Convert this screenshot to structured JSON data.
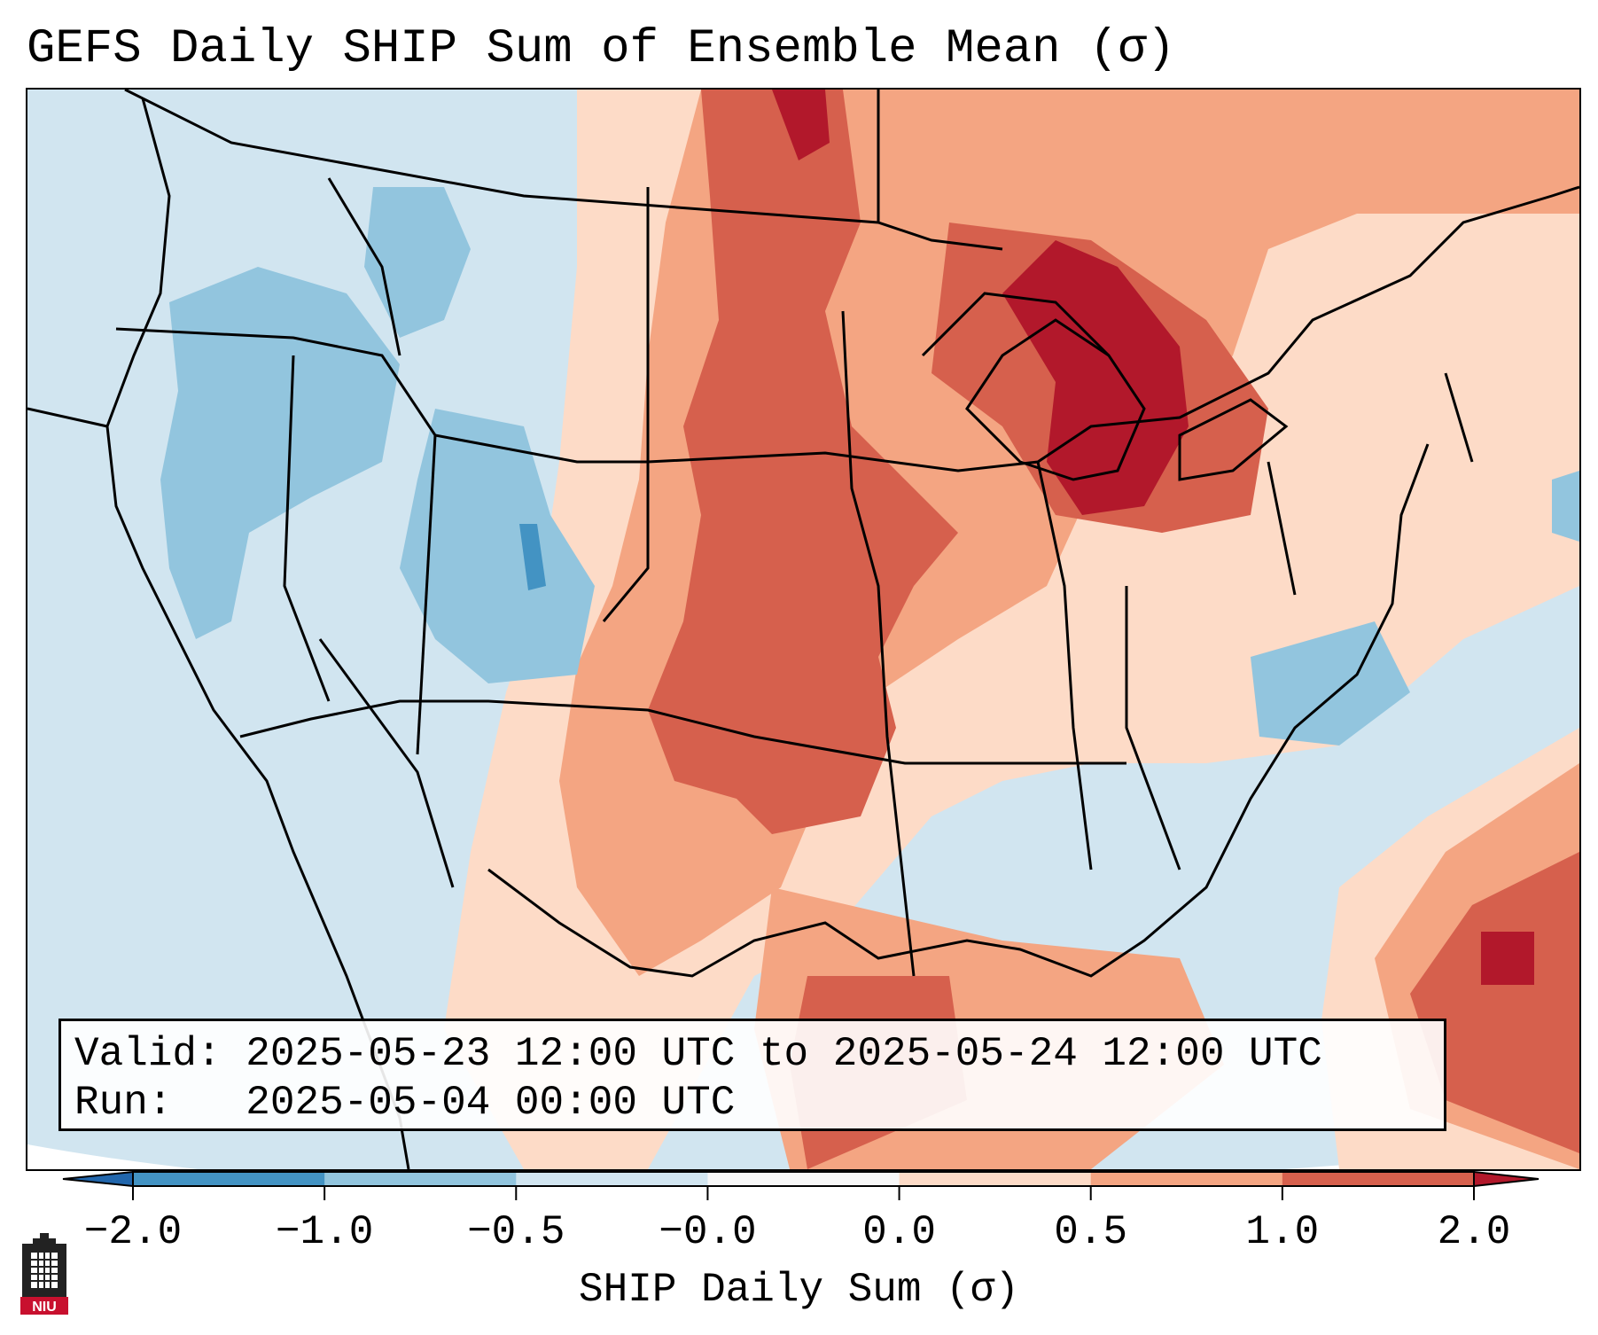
{
  "title": "GEFS Daily SHIP Sum of Ensemble Mean (σ)",
  "info": {
    "valid_label": "Valid:",
    "valid_value": "2025-05-23 12:00 UTC to 2025-05-24 12:00 UTC",
    "run_label": "Run:",
    "run_value": "2025-05-04 00:00 UTC"
  },
  "colorbar": {
    "label": "SHIP Daily Sum (σ)",
    "ticks": [
      "−2.0",
      "−1.0",
      "−0.5",
      "−0.0",
      "0.0",
      "0.5",
      "1.0",
      "2.0"
    ],
    "bins": [
      {
        "from": -2.0,
        "to": -1.0,
        "color": "#4393c3"
      },
      {
        "from": -1.0,
        "to": -0.5,
        "color": "#92c5de"
      },
      {
        "from": -0.5,
        "to": -0.0,
        "color": "#d1e5f0"
      },
      {
        "from": -0.0,
        "to": 0.0,
        "color": "#f7f7f7"
      },
      {
        "from": 0.0,
        "to": 0.5,
        "color": "#fddbc7"
      },
      {
        "from": 0.5,
        "to": 1.0,
        "color": "#f4a582"
      },
      {
        "from": 1.0,
        "to": 2.0,
        "color": "#d6604d"
      }
    ],
    "under_color": "#2166ac",
    "over_color": "#b2182b"
  },
  "logo": {
    "text": "NIU",
    "color": "#c8102e"
  },
  "colors": {
    "strong_neg": "#4393c3",
    "neg": "#92c5de",
    "weak_neg": "#d1e5f0",
    "weak_pos": "#fddbc7",
    "pos": "#f4a582",
    "strong_pos": "#d6604d",
    "extreme_pos": "#b2182b"
  }
}
